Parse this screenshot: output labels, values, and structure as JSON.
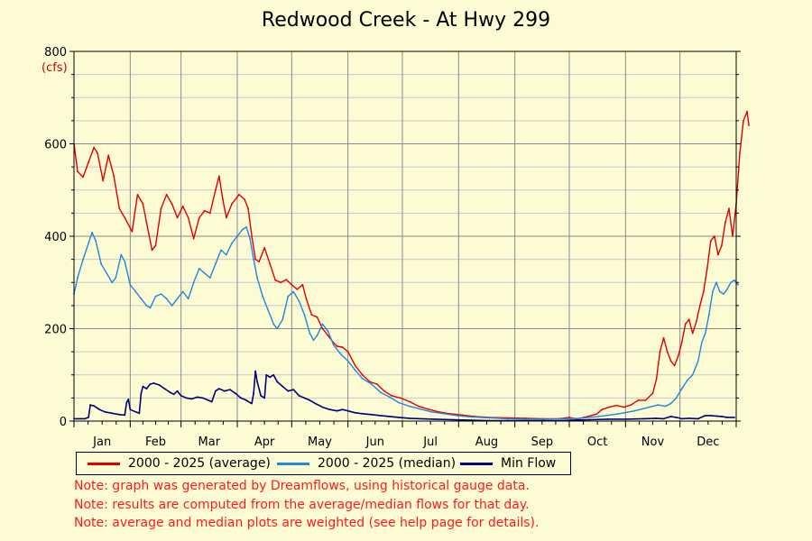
{
  "chart_data": {
    "type": "line",
    "title": "Redwood Creek - At Hwy 299",
    "ylabel": "(cfs)",
    "xlabel": "",
    "ylim": [
      0,
      800
    ],
    "yticks": [
      0,
      200,
      400,
      600,
      800
    ],
    "months": [
      "Jan",
      "Feb",
      "Mar",
      "Apr",
      "May",
      "Jun",
      "Jul",
      "Aug",
      "Sep",
      "Oct",
      "Nov",
      "Dec"
    ],
    "grid": true,
    "legend_placement": "bottom",
    "series": [
      {
        "name": "2000 - 2025 (average)",
        "color": "#e00000",
        "points": [
          [
            1,
            600
          ],
          [
            3,
            540
          ],
          [
            6,
            528
          ],
          [
            9,
            560
          ],
          [
            12,
            592
          ],
          [
            14,
            580
          ],
          [
            17,
            520
          ],
          [
            20,
            575
          ],
          [
            23,
            530
          ],
          [
            26,
            460
          ],
          [
            29,
            440
          ],
          [
            33,
            410
          ],
          [
            36,
            490
          ],
          [
            39,
            470
          ],
          [
            41,
            430
          ],
          [
            44,
            370
          ],
          [
            46,
            380
          ],
          [
            49,
            460
          ],
          [
            52,
            490
          ],
          [
            55,
            470
          ],
          [
            58,
            440
          ],
          [
            61,
            465
          ],
          [
            64,
            440
          ],
          [
            67,
            395
          ],
          [
            70,
            440
          ],
          [
            73,
            455
          ],
          [
            76,
            450
          ],
          [
            79,
            500
          ],
          [
            81,
            530
          ],
          [
            83,
            480
          ],
          [
            85,
            440
          ],
          [
            88,
            470
          ],
          [
            92,
            490
          ],
          [
            95,
            480
          ],
          [
            97,
            460
          ],
          [
            99,
            400
          ],
          [
            101,
            350
          ],
          [
            103,
            345
          ],
          [
            106,
            375
          ],
          [
            109,
            340
          ],
          [
            112,
            305
          ],
          [
            115,
            300
          ],
          [
            118,
            306
          ],
          [
            121,
            295
          ],
          [
            124,
            285
          ],
          [
            127,
            295
          ],
          [
            129,
            265
          ],
          [
            132,
            230
          ],
          [
            135,
            225
          ],
          [
            138,
            200
          ],
          [
            141,
            185
          ],
          [
            144,
            170
          ],
          [
            146,
            162
          ],
          [
            149,
            160
          ],
          [
            152,
            150
          ],
          [
            156,
            120
          ],
          [
            160,
            100
          ],
          [
            164,
            85
          ],
          [
            168,
            80
          ],
          [
            172,
            65
          ],
          [
            176,
            55
          ],
          [
            181,
            50
          ],
          [
            186,
            42
          ],
          [
            191,
            32
          ],
          [
            196,
            26
          ],
          [
            202,
            20
          ],
          [
            208,
            16
          ],
          [
            215,
            13
          ],
          [
            222,
            10
          ],
          [
            230,
            8
          ],
          [
            240,
            7
          ],
          [
            250,
            6
          ],
          [
            260,
            5
          ],
          [
            268,
            5
          ],
          [
            274,
            8
          ],
          [
            278,
            5
          ],
          [
            282,
            8
          ],
          [
            286,
            12
          ],
          [
            289,
            15
          ],
          [
            292,
            25
          ],
          [
            296,
            30
          ],
          [
            300,
            34
          ],
          [
            304,
            30
          ],
          [
            308,
            35
          ],
          [
            312,
            45
          ],
          [
            316,
            45
          ],
          [
            320,
            60
          ],
          [
            322,
            90
          ],
          [
            324,
            150
          ],
          [
            326,
            180
          ],
          [
            328,
            150
          ],
          [
            330,
            130
          ],
          [
            332,
            120
          ],
          [
            334,
            140
          ],
          [
            336,
            170
          ],
          [
            338,
            210
          ],
          [
            340,
            220
          ],
          [
            342,
            190
          ],
          [
            344,
            215
          ],
          [
            346,
            250
          ],
          [
            348,
            280
          ],
          [
            350,
            330
          ],
          [
            352,
            390
          ],
          [
            354,
            400
          ],
          [
            356,
            360
          ],
          [
            358,
            380
          ],
          [
            360,
            430
          ],
          [
            362,
            460
          ],
          [
            364,
            400
          ],
          [
            366,
            470
          ],
          [
            368,
            580
          ],
          [
            370,
            650
          ],
          [
            372,
            670
          ],
          [
            373,
            640
          ]
        ]
      },
      {
        "name": "2000 - 2025 (median)",
        "color": "#1f88d9",
        "points": [
          [
            1,
            275
          ],
          [
            3,
            310
          ],
          [
            6,
            350
          ],
          [
            9,
            385
          ],
          [
            11,
            408
          ],
          [
            13,
            390
          ],
          [
            16,
            340
          ],
          [
            19,
            320
          ],
          [
            22,
            300
          ],
          [
            24,
            310
          ],
          [
            27,
            360
          ],
          [
            29,
            345
          ],
          [
            32,
            295
          ],
          [
            35,
            280
          ],
          [
            38,
            265
          ],
          [
            41,
            250
          ],
          [
            43,
            245
          ],
          [
            46,
            270
          ],
          [
            49,
            275
          ],
          [
            52,
            265
          ],
          [
            55,
            250
          ],
          [
            58,
            265
          ],
          [
            61,
            280
          ],
          [
            64,
            265
          ],
          [
            67,
            300
          ],
          [
            70,
            330
          ],
          [
            73,
            320
          ],
          [
            76,
            310
          ],
          [
            79,
            340
          ],
          [
            82,
            370
          ],
          [
            85,
            360
          ],
          [
            88,
            385
          ],
          [
            91,
            400
          ],
          [
            94,
            415
          ],
          [
            96,
            420
          ],
          [
            98,
            395
          ],
          [
            100,
            350
          ],
          [
            102,
            310
          ],
          [
            105,
            270
          ],
          [
            108,
            240
          ],
          [
            111,
            210
          ],
          [
            113,
            200
          ],
          [
            116,
            220
          ],
          [
            119,
            270
          ],
          [
            122,
            280
          ],
          [
            125,
            260
          ],
          [
            128,
            230
          ],
          [
            131,
            190
          ],
          [
            133,
            175
          ],
          [
            135,
            185
          ],
          [
            138,
            210
          ],
          [
            141,
            195
          ],
          [
            144,
            165
          ],
          [
            148,
            145
          ],
          [
            152,
            130
          ],
          [
            156,
            110
          ],
          [
            160,
            92
          ],
          [
            165,
            80
          ],
          [
            170,
            62
          ],
          [
            175,
            52
          ],
          [
            180,
            40
          ],
          [
            186,
            32
          ],
          [
            192,
            26
          ],
          [
            198,
            20
          ],
          [
            205,
            16
          ],
          [
            212,
            12
          ],
          [
            220,
            9
          ],
          [
            230,
            7
          ],
          [
            240,
            5
          ],
          [
            250,
            4
          ],
          [
            260,
            4
          ],
          [
            270,
            5
          ],
          [
            280,
            6
          ],
          [
            290,
            10
          ],
          [
            300,
            15
          ],
          [
            310,
            22
          ],
          [
            318,
            30
          ],
          [
            323,
            35
          ],
          [
            327,
            32
          ],
          [
            330,
            38
          ],
          [
            333,
            50
          ],
          [
            336,
            70
          ],
          [
            339,
            88
          ],
          [
            342,
            100
          ],
          [
            345,
            130
          ],
          [
            347,
            170
          ],
          [
            349,
            190
          ],
          [
            351,
            230
          ],
          [
            353,
            280
          ],
          [
            355,
            300
          ],
          [
            357,
            280
          ],
          [
            359,
            275
          ],
          [
            361,
            285
          ],
          [
            363,
            300
          ],
          [
            365,
            305
          ],
          [
            367,
            295
          ]
        ]
      },
      {
        "name": "Min Flow",
        "color": "#00007a",
        "points": [
          [
            1,
            5
          ],
          [
            4,
            5
          ],
          [
            7,
            5
          ],
          [
            9,
            8
          ],
          [
            10,
            35
          ],
          [
            12,
            33
          ],
          [
            15,
            25
          ],
          [
            18,
            20
          ],
          [
            22,
            17
          ],
          [
            26,
            14
          ],
          [
            29,
            13
          ],
          [
            30,
            40
          ],
          [
            31,
            47
          ],
          [
            32,
            25
          ],
          [
            35,
            20
          ],
          [
            37,
            17
          ],
          [
            38,
            60
          ],
          [
            39,
            75
          ],
          [
            41,
            70
          ],
          [
            43,
            80
          ],
          [
            45,
            82
          ],
          [
            48,
            78
          ],
          [
            51,
            70
          ],
          [
            54,
            62
          ],
          [
            56,
            58
          ],
          [
            58,
            65
          ],
          [
            60,
            55
          ],
          [
            63,
            50
          ],
          [
            66,
            48
          ],
          [
            69,
            52
          ],
          [
            72,
            50
          ],
          [
            75,
            45
          ],
          [
            77,
            42
          ],
          [
            79,
            65
          ],
          [
            81,
            70
          ],
          [
            84,
            65
          ],
          [
            87,
            68
          ],
          [
            90,
            60
          ],
          [
            93,
            50
          ],
          [
            96,
            45
          ],
          [
            98,
            40
          ],
          [
            99,
            38
          ],
          [
            100,
            60
          ],
          [
            101,
            108
          ],
          [
            102,
            85
          ],
          [
            104,
            55
          ],
          [
            106,
            50
          ],
          [
            107,
            100
          ],
          [
            109,
            95
          ],
          [
            111,
            100
          ],
          [
            113,
            85
          ],
          [
            116,
            75
          ],
          [
            119,
            65
          ],
          [
            122,
            68
          ],
          [
            125,
            55
          ],
          [
            128,
            50
          ],
          [
            131,
            45
          ],
          [
            134,
            38
          ],
          [
            138,
            30
          ],
          [
            142,
            25
          ],
          [
            146,
            22
          ],
          [
            149,
            25
          ],
          [
            152,
            22
          ],
          [
            156,
            18
          ],
          [
            160,
            16
          ],
          [
            165,
            14
          ],
          [
            170,
            12
          ],
          [
            175,
            10
          ],
          [
            180,
            8
          ],
          [
            186,
            6
          ],
          [
            192,
            5
          ],
          [
            200,
            4
          ],
          [
            210,
            3
          ],
          [
            220,
            2
          ],
          [
            230,
            1
          ],
          [
            240,
            1
          ],
          [
            250,
            1
          ],
          [
            260,
            1
          ],
          [
            268,
            1
          ],
          [
            275,
            2
          ],
          [
            285,
            3
          ],
          [
            295,
            4
          ],
          [
            305,
            4
          ],
          [
            315,
            5
          ],
          [
            322,
            6
          ],
          [
            326,
            5
          ],
          [
            330,
            10
          ],
          [
            333,
            8
          ],
          [
            336,
            5
          ],
          [
            340,
            6
          ],
          [
            345,
            5
          ],
          [
            349,
            12
          ],
          [
            352,
            12
          ],
          [
            355,
            11
          ],
          [
            358,
            10
          ],
          [
            361,
            8
          ],
          [
            365,
            8
          ]
        ]
      }
    ]
  },
  "notes": [
    "Note: graph was generated by Dreamflows, using historical gauge data.",
    "Note: results are computed from the average/median flows for that day.",
    "Note: average and median plots are weighted (see help page for details)."
  ]
}
